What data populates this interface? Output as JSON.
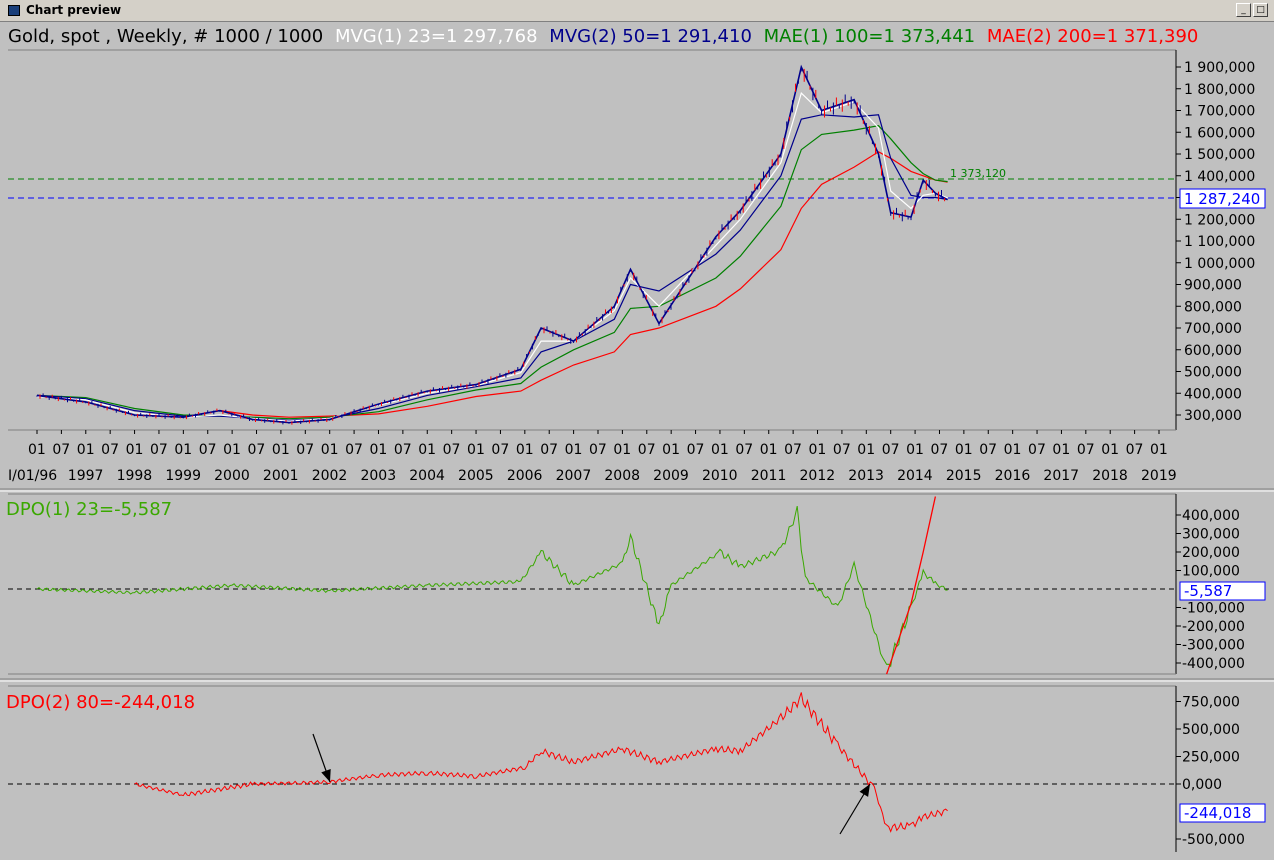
{
  "window": {
    "title": "Chart preview"
  },
  "main": {
    "legend": [
      {
        "text": "Gold, spot , Weekly, # 1000 / 1000",
        "color": "#000000"
      },
      {
        "text": "MVG(1) 23=1 297,768",
        "color": "#ffffff"
      },
      {
        "text": "MVG(2) 50=1 291,410",
        "color": "#00008b"
      },
      {
        "text": "MAE(1) 100=1 373,441",
        "color": "#008000"
      },
      {
        "text": "MAE(2) 200=1 371,390",
        "color": "#ff0000"
      }
    ],
    "yticks": [
      "1 900,000",
      "1 800,000",
      "1 700,000",
      "1 600,000",
      "1 500,000",
      "1 400,000",
      "1 300,000",
      "1 200,000",
      "1 100,000",
      "1 000,000",
      "900,000",
      "800,000",
      "700,000",
      "600,000",
      "500,000",
      "400,000",
      "300,000"
    ],
    "last_price": "1 287,240",
    "mae_level_label": "1 373,120",
    "x_month_labels": [
      "01",
      "07",
      "01",
      "07",
      "01",
      "07",
      "01",
      "07",
      "01",
      "07",
      "01",
      "07",
      "01",
      "07",
      "01",
      "07",
      "01",
      "07",
      "01",
      "07",
      "01",
      "07",
      "01",
      "07",
      "01",
      "07",
      "01",
      "07",
      "01",
      "07",
      "01",
      "07",
      "01",
      "07",
      "01",
      "07",
      "01",
      "07",
      "01",
      "07",
      "01",
      "07",
      "01",
      "07",
      "01",
      "07",
      "01"
    ],
    "x_year_labels": [
      "I/01/96",
      "1997",
      "1998",
      "1999",
      "2000",
      "2001",
      "2002",
      "2003",
      "2004",
      "2005",
      "2006",
      "2007",
      "2008",
      "2009",
      "2010",
      "2011",
      "2012",
      "2013",
      "2014",
      "2015",
      "2016",
      "2017",
      "2018",
      "2019"
    ]
  },
  "dpo1": {
    "label": "DPO(1) 23=-5,587",
    "yticks": [
      "400,000",
      "300,000",
      "200,000",
      "100,000",
      "-100,000",
      "-200,000",
      "-300,000",
      "-400,000"
    ],
    "last_value": "-5,587"
  },
  "dpo2": {
    "label": "DPO(2) 80=-244,018",
    "yticks": [
      "750,000",
      "500,000",
      "250,000",
      "0,000",
      "-500,000"
    ],
    "last_value": "-244,018"
  },
  "colors": {
    "price": "#00008b",
    "down": "#ff0000",
    "mvg1": "#ffffff",
    "mvg2": "#00008b",
    "mae1": "#008000",
    "mae2": "#ff0000",
    "dpo1": "#3aa800",
    "dpo2": "#ff0000",
    "trendline": "#ff0000",
    "arrow": "#000000",
    "background": "#c0c0c0"
  },
  "chart_data": [
    {
      "type": "line",
      "title": "Gold, spot , Weekly, # 1000 / 1000",
      "xlim": [
        "1996-01",
        "2019-12"
      ],
      "ylim": [
        200,
        1960
      ],
      "grid": false,
      "legend": "top",
      "x": [
        "1996-01",
        "1997-01",
        "1998-01",
        "1999-01",
        "1999-10",
        "2000-06",
        "2001-03",
        "2002-01",
        "2003-01",
        "2004-01",
        "2005-01",
        "2005-12",
        "2006-05",
        "2007-01",
        "2007-11",
        "2008-03",
        "2008-10",
        "2009-12",
        "2010-06",
        "2011-04",
        "2011-09",
        "2012-02",
        "2012-10",
        "2013-04",
        "2013-07",
        "2013-12",
        "2014-03",
        "2014-06",
        "2014-09"
      ],
      "series": [
        {
          "name": "Gold, spot",
          "values": [
            390,
            360,
            300,
            290,
            320,
            280,
            265,
            280,
            350,
            410,
            440,
            510,
            700,
            640,
            800,
            970,
            720,
            1120,
            1240,
            1500,
            1900,
            1700,
            1750,
            1500,
            1230,
            1210,
            1380,
            1320,
            1290
          ]
        },
        {
          "name": "MVG(1) 23",
          "values": [
            385,
            370,
            310,
            290,
            300,
            285,
            272,
            285,
            345,
            400,
            435,
            495,
            640,
            640,
            780,
            930,
            800,
            1080,
            1200,
            1460,
            1780,
            1690,
            1740,
            1620,
            1330,
            1250,
            1310,
            1320,
            1298
          ]
        },
        {
          "name": "MVG(2) 50",
          "values": [
            390,
            375,
            320,
            295,
            295,
            285,
            275,
            285,
            330,
            390,
            430,
            470,
            590,
            640,
            740,
            900,
            870,
            1040,
            1150,
            1400,
            1660,
            1680,
            1670,
            1680,
            1480,
            1310,
            1300,
            1300,
            1291
          ]
        },
        {
          "name": "MAE(1) 100",
          "values": [
            390,
            380,
            330,
            300,
            295,
            290,
            283,
            290,
            315,
            370,
            415,
            445,
            520,
            600,
            680,
            790,
            800,
            930,
            1030,
            1260,
            1520,
            1590,
            1610,
            1630,
            1570,
            1460,
            1410,
            1380,
            1373
          ]
        },
        {
          "name": "MAE(2) 200",
          "values": [
            null,
            null,
            null,
            null,
            320,
            300,
            290,
            295,
            305,
            340,
            385,
            410,
            460,
            530,
            590,
            670,
            700,
            800,
            880,
            1060,
            1250,
            1360,
            1440,
            1510,
            1480,
            1420,
            1400,
            1380,
            1371
          ]
        }
      ]
    },
    {
      "type": "line",
      "title": "DPO(1) 23=-5,587",
      "ylim": [
        -460,
        470
      ],
      "x": [
        "1996-01",
        "1998-01",
        "2000-01",
        "2002-01",
        "2004-01",
        "2005-12",
        "2006-05",
        "2007-01",
        "2008-01",
        "2008-03",
        "2008-10",
        "2009-01",
        "2010-01",
        "2010-06",
        "2011-04",
        "2011-08",
        "2011-10",
        "2012-06",
        "2012-10",
        "2013-06",
        "2013-12",
        "2014-03",
        "2014-06",
        "2014-09"
      ],
      "series": [
        {
          "name": "DPO(1) 23",
          "values": [
            0,
            -20,
            20,
            -10,
            20,
            40,
            200,
            20,
            140,
            280,
            -200,
            20,
            200,
            120,
            210,
            420,
            60,
            -100,
            130,
            -440,
            -100,
            90,
            30,
            -6
          ]
        },
        {
          "name": "Trendline",
          "values": [
            null,
            null,
            null,
            null,
            null,
            null,
            null,
            null,
            null,
            null,
            null,
            null,
            null,
            null,
            null,
            null,
            null,
            null,
            null,
            -460,
            -80,
            200,
            500,
            null
          ]
        }
      ]
    },
    {
      "type": "line",
      "title": "DPO(2) 80=-244,018",
      "ylim": [
        -560,
        830
      ],
      "x": [
        "1998-01",
        "1999-01",
        "2000-06",
        "2001-06",
        "2002-01",
        "2003-01",
        "2004-01",
        "2005-01",
        "2006-01",
        "2006-05",
        "2007-01",
        "2008-01",
        "2008-10",
        "2009-12",
        "2010-06",
        "2011-04",
        "2011-09",
        "2012-06",
        "2013-03",
        "2013-06",
        "2013-12",
        "2014-03",
        "2014-09"
      ],
      "series": [
        {
          "name": "DPO(2) 80",
          "values": [
            0,
            -100,
            0,
            10,
            20,
            80,
            100,
            70,
            150,
            300,
            200,
            320,
            200,
            320,
            300,
            600,
            780,
            350,
            -40,
            -400,
            -380,
            -300,
            -244
          ]
        }
      ],
      "annotations": [
        "arrow near 2002-01 at zero crossing",
        "arrow near 2013-03 at zero crossing"
      ]
    }
  ]
}
